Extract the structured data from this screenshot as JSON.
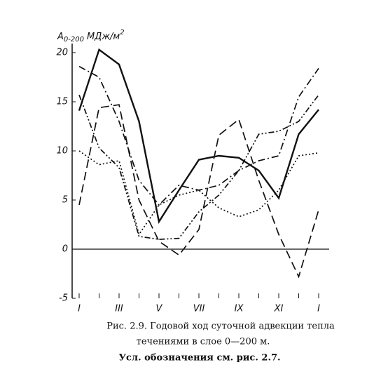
{
  "chart_data": {
    "type": "line",
    "y_label": {
      "symbol": "A",
      "subscript": "0-200",
      "unit": "МДж/м",
      "superscript": "2"
    },
    "categories": [
      "I",
      null,
      "III",
      null,
      "V",
      null,
      "VII",
      null,
      "IX",
      null,
      "XI",
      null,
      "I"
    ],
    "ylim": [
      -5,
      20
    ],
    "yticks": [
      20,
      15,
      10,
      5,
      0,
      -5
    ],
    "zero_line": true,
    "series": [
      {
        "color": "#111111",
        "dash": "solid",
        "values": [
          14.1,
          20.3,
          18.8,
          13,
          2.8,
          6,
          9.1,
          9.5,
          9.3,
          8,
          5.2,
          11.7,
          14.2
        ]
      },
      {
        "color": "#111111",
        "dash": "long-dash",
        "values": [
          4.5,
          14.4,
          14.7,
          5,
          0.8,
          -0.6,
          2,
          11.6,
          13.2,
          7,
          1.5,
          -2.8,
          4
        ]
      },
      {
        "color": "#111111",
        "dash": "dash-dot",
        "values": [
          18.6,
          17.5,
          13,
          7,
          4.5,
          6.5,
          6,
          6.5,
          8,
          9,
          9.5,
          15.5,
          18.4
        ]
      },
      {
        "color": "#111111",
        "dash": "dash-dot-dot",
        "values": [
          15.7,
          10.3,
          8.3,
          1.3,
          1,
          1.1,
          3.8,
          5.5,
          8,
          11.7,
          12,
          13,
          15.7
        ]
      },
      {
        "color": "#111111",
        "dash": "dotted",
        "values": [
          10,
          8.6,
          9,
          1.5,
          4.5,
          5.5,
          6,
          4.2,
          3.3,
          4,
          6,
          9.5,
          9.8
        ]
      }
    ],
    "caption": [
      "Рис. 2.9. Годовой ход суточной адвекции тепла",
      "течениями в слое 0—200 м."
    ],
    "note": "Усл. обозначения см. рис. 2.7."
  }
}
